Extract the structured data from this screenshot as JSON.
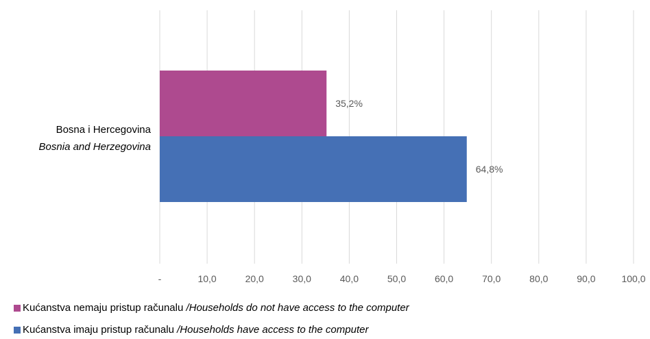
{
  "chart_data": {
    "type": "bar",
    "orientation": "horizontal",
    "categories": [
      {
        "line1": "Bosna i Hercegovina",
        "line2": "Bosnia and Herzegovina"
      }
    ],
    "series": [
      {
        "name": "Kućanstva nemaju pristup računalu",
        "name_en": "/Households do not have access to the computer",
        "color": "#ae4a8f",
        "values": [
          35.2
        ],
        "value_labels": [
          "35,2%"
        ]
      },
      {
        "name": "Kućanstva imaju pristup računalu",
        "name_en": "/Households have access to the computer",
        "color": "#4570b5",
        "values": [
          64.8
        ],
        "value_labels": [
          "64,8%"
        ]
      }
    ],
    "xlim": [
      0,
      100
    ],
    "x_ticks": [
      0,
      10,
      20,
      30,
      40,
      50,
      60,
      70,
      80,
      90,
      100
    ],
    "x_tick_labels": [
      "-",
      "10,0",
      "20,0",
      "30,0",
      "40,0",
      "50,0",
      "60,0",
      "70,0",
      "80,0",
      "90,0",
      "100,0"
    ],
    "grid": true,
    "legend_position": "bottom-left",
    "title": "",
    "xlabel": "",
    "ylabel": ""
  }
}
